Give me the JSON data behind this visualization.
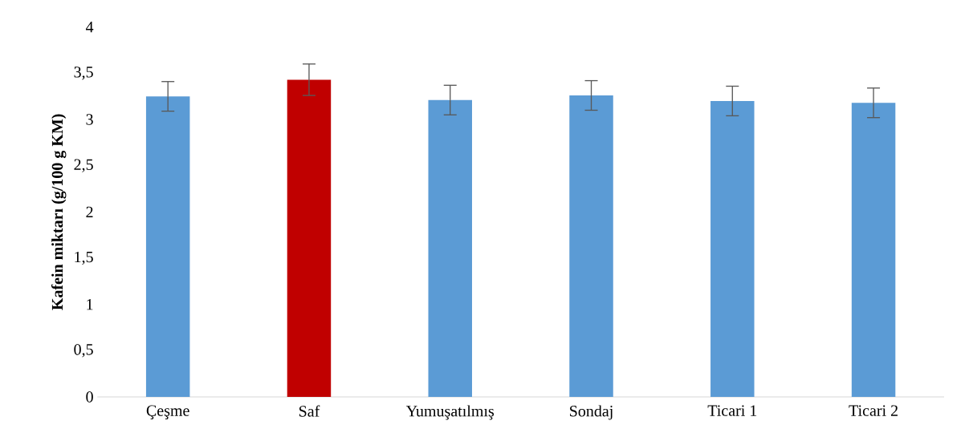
{
  "chart_data": {
    "type": "bar",
    "ylabel": "Kafein miktarı (g/100 g KM)",
    "categories": [
      "Çeşme",
      "Saf",
      "Yumuşatılmış",
      "Sondaj",
      "Ticari 1",
      "Ticari 2"
    ],
    "values": [
      3.25,
      3.43,
      3.21,
      3.26,
      3.2,
      3.18
    ],
    "errors": [
      0.16,
      0.17,
      0.16,
      0.16,
      0.16,
      0.16
    ],
    "colors": [
      "#5b9bd5",
      "#c00000",
      "#5b9bd5",
      "#5b9bd5",
      "#5b9bd5",
      "#5b9bd5"
    ],
    "ylim": [
      0,
      4
    ],
    "yticks": [
      0,
      {
        "value": 0.5,
        "label": "0,5"
      },
      1,
      {
        "value": 1.5,
        "label": "1,5"
      },
      2,
      {
        "value": 2.5,
        "label": "2,5"
      },
      3,
      {
        "value": 3.5,
        "label": "3,5"
      },
      4
    ],
    "grid": false
  }
}
